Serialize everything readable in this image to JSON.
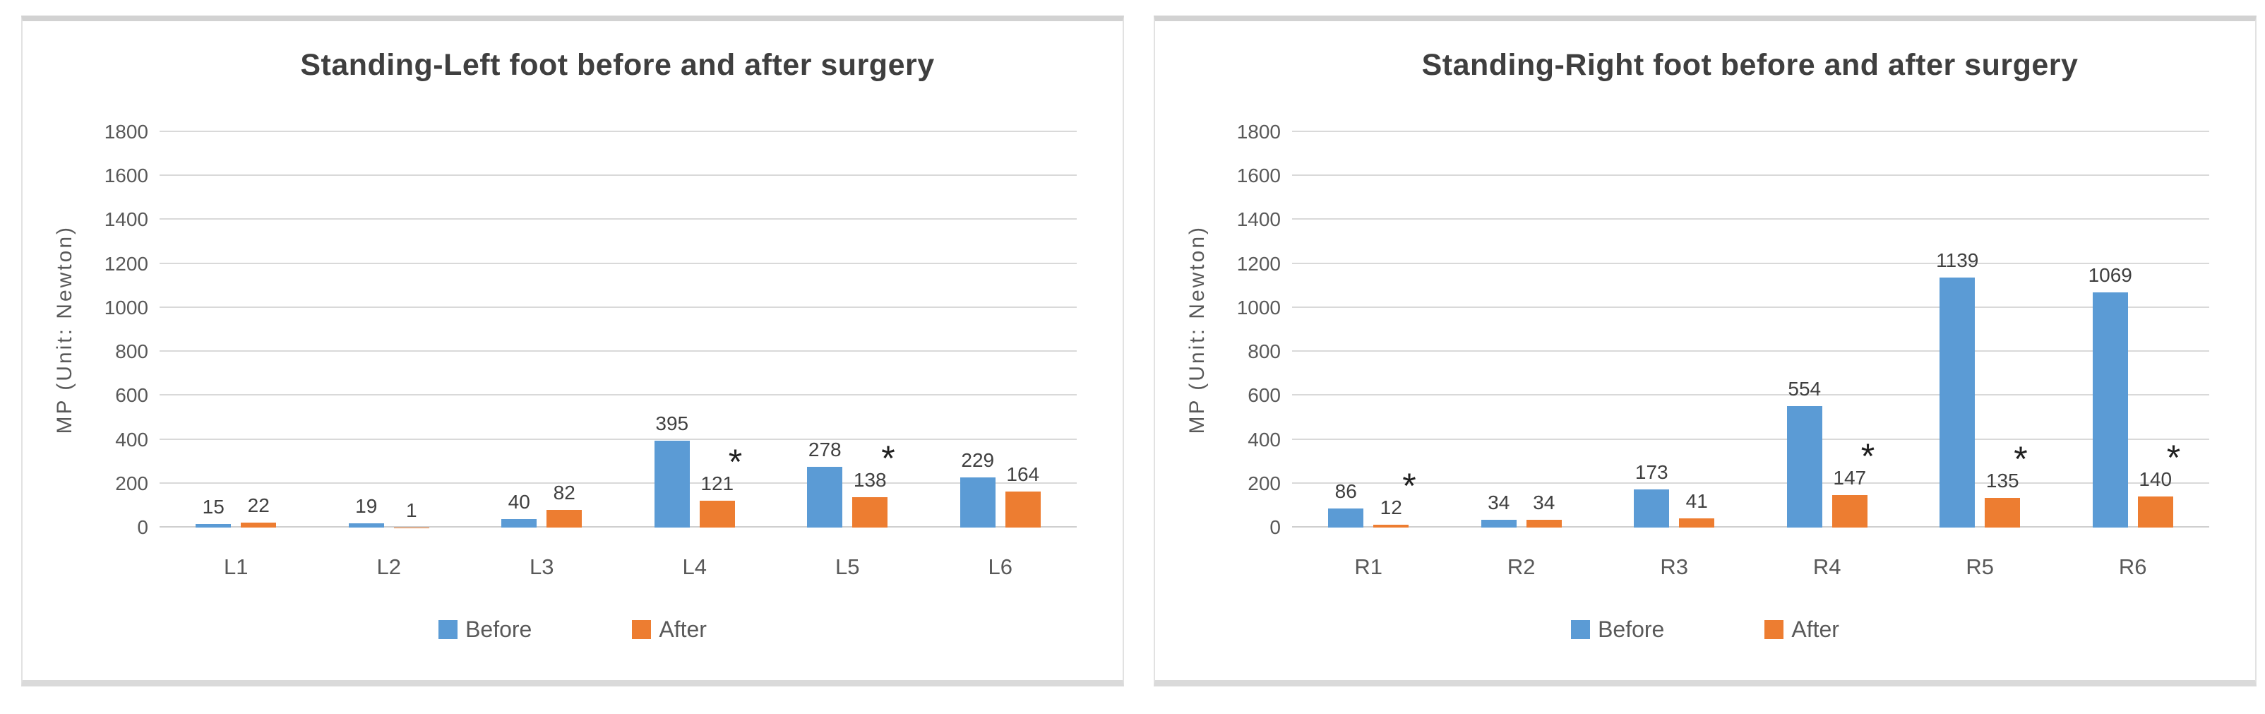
{
  "figure": {
    "description": "Two side-by-side bar charts of maximum pressure (MP) on left and right foot regions before and after surgery",
    "background": "#ffffff"
  },
  "palette": {
    "before": "#5B9BD5",
    "after": "#ED7D31",
    "gridline": "#D9D9D9",
    "title_text": "#3F3F3F",
    "axis_text": "#595959",
    "value_text": "#404040",
    "panel_border": "#D2D2D2"
  },
  "chart_data": [
    {
      "type": "bar",
      "title": "Standing-Left foot before and after surgery",
      "xlabel": "",
      "ylabel": "MP  (Unit: Newton)",
      "ylim": [
        0,
        1800
      ],
      "yticks": [
        0,
        200,
        400,
        600,
        800,
        1000,
        1200,
        1400,
        1600,
        1800
      ],
      "grid": true,
      "legend_position": "bottom",
      "categories": [
        "L1",
        "L2",
        "L3",
        "L4",
        "L5",
        "L6"
      ],
      "series": [
        {
          "name": "Before",
          "color": "#5B9BD5",
          "values": [
            15,
            19,
            40,
            395,
            278,
            229
          ]
        },
        {
          "name": "After",
          "color": "#ED7D31",
          "values": [
            22,
            1,
            82,
            121,
            138,
            164
          ]
        }
      ],
      "significance_marker": "*",
      "significant_categories": [
        "L4",
        "L5"
      ]
    },
    {
      "type": "bar",
      "title": "Standing-Right foot before and after surgery",
      "xlabel": "",
      "ylabel": "MP  (Unit: Newton)",
      "ylim": [
        0,
        1800
      ],
      "yticks": [
        0,
        200,
        400,
        600,
        800,
        1000,
        1200,
        1400,
        1600,
        1800
      ],
      "grid": true,
      "legend_position": "bottom",
      "categories": [
        "R1",
        "R2",
        "R3",
        "R4",
        "R5",
        "R6"
      ],
      "series": [
        {
          "name": "Before",
          "color": "#5B9BD5",
          "values": [
            86,
            34,
            173,
            554,
            1139,
            1069
          ]
        },
        {
          "name": "After",
          "color": "#ED7D31",
          "values": [
            12,
            34,
            41,
            147,
            135,
            140
          ]
        }
      ],
      "significance_marker": "*",
      "significant_categories": [
        "R1",
        "R4",
        "R5",
        "R6"
      ]
    }
  ]
}
